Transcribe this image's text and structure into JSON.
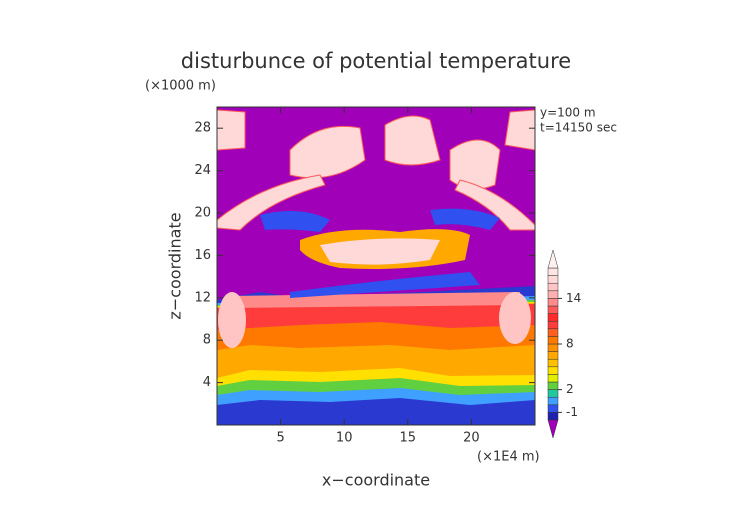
{
  "chart_data": {
    "type": "contour",
    "title": "disturbunce of potential temperature",
    "y_unit_label": "(×1000 m)",
    "x_unit_label": "(×1E4 m)",
    "annotations": [
      "y=100 m",
      "t=14150 sec"
    ],
    "xlabel": "x−coordinate",
    "ylabel": "z−coordinate",
    "xlim": [
      0,
      25
    ],
    "ylim": [
      0,
      30
    ],
    "xticks": [
      5,
      10,
      15,
      20
    ],
    "yticks": [
      4,
      8,
      12,
      16,
      20,
      24,
      28
    ],
    "colorbar": {
      "levels": [
        -2,
        -1,
        0,
        1,
        2,
        3,
        4,
        5,
        6,
        7,
        8,
        9,
        10,
        11,
        12,
        13,
        14,
        15,
        16,
        17,
        18
      ],
      "colors": [
        "#2020b0",
        "#3050f0",
        "#40a0ff",
        "#20c8a0",
        "#60d040",
        "#e0f000",
        "#ffe000",
        "#ffc000",
        "#ffa800",
        "#ff9000",
        "#ff7800",
        "#ff6020",
        "#ff3c3c",
        "#ff2a2a",
        "#ff5a5a",
        "#ff8a8a",
        "#ffb0b0",
        "#ffc4c4",
        "#ffd8d8",
        "#ffe4e4"
      ],
      "under_color": "#a000b8",
      "over_color": "#fff0f0",
      "ticks": [
        -1,
        2,
        8,
        14
      ]
    }
  }
}
